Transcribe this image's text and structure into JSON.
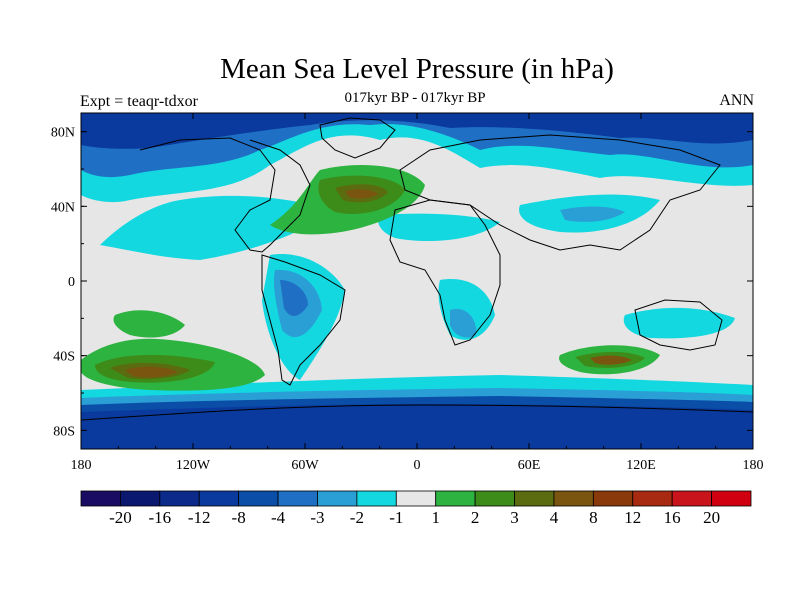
{
  "title": "Mean Sea Level Pressure (in hPa)",
  "subtitle": "017kyr BP - 017kyr BP",
  "left_label": "Expt = teaqr-tdxor",
  "right_label": "ANN",
  "map": {
    "projection": "cylindrical equidistant",
    "lon_range": [
      -180,
      180
    ],
    "lat_range": [
      -90,
      90
    ],
    "x_ticks": [
      "180",
      "120W",
      "60W",
      "0",
      "60E",
      "120E",
      "180"
    ],
    "y_ticks": [
      "80N",
      "40N",
      "0",
      "40S",
      "80S"
    ]
  },
  "colorbar": {
    "labels": [
      "-20",
      "-16",
      "-12",
      "-8",
      "-4",
      "-3",
      "-2",
      "-1",
      "1",
      "2",
      "3",
      "4",
      "8",
      "12",
      "16",
      "20"
    ],
    "colors": [
      "#1a0c62",
      "#0b1870",
      "#0b2a8a",
      "#0a3a9e",
      "#0a4ea8",
      "#1f6fc4",
      "#2a9fd6",
      "#14d8e0",
      "#e6e6e6",
      "#2db340",
      "#3d8c1a",
      "#5a6b10",
      "#7a5510",
      "#8a3a0a",
      "#a82a10",
      "#c8141a",
      "#d00010"
    ]
  },
  "chart_data": {
    "type": "heatmap",
    "title": "Mean Sea Level Pressure (in hPa)",
    "subtitle": "017kyr BP - 017kyr BP",
    "contour_levels": [
      -20,
      -16,
      -12,
      -8,
      -4,
      -3,
      -2,
      -1,
      1,
      2,
      3,
      4,
      8,
      12,
      16,
      20
    ],
    "xlim": [
      -180,
      180
    ],
    "ylim": [
      -90,
      90
    ],
    "features": [
      {
        "region": "North Atlantic",
        "sign": "positive",
        "approx_max": 4
      },
      {
        "region": "South Pacific ~50S 140W",
        "sign": "positive",
        "approx_max": 4
      },
      {
        "region": "Southern Indian Ocean ~45S 100E",
        "sign": "positive",
        "approx_max": 4
      },
      {
        "region": "Antarctica / Southern Ocean",
        "sign": "negative",
        "approx_min": -8
      },
      {
        "region": "Arctic / high northern latitudes",
        "sign": "negative",
        "approx_min": -4
      }
    ]
  }
}
